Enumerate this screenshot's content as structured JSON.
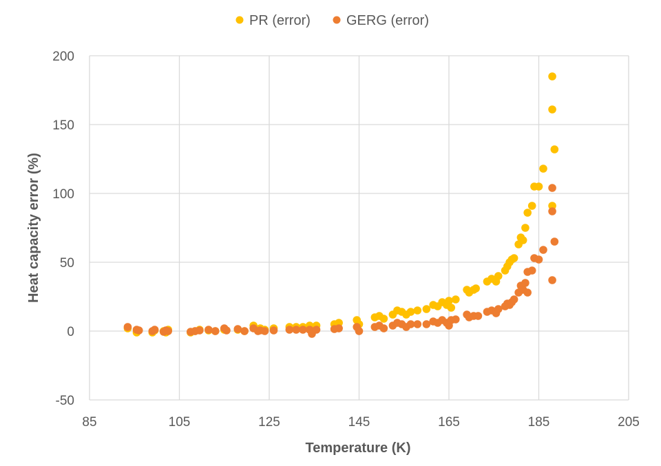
{
  "chart_data": {
    "type": "scatter",
    "title": "",
    "xlabel": "Temperature (K)",
    "ylabel": "Heat capacity error (%)",
    "xlim": [
      85,
      205
    ],
    "ylim": [
      -50,
      200
    ],
    "xticks": [
      85,
      105,
      125,
      145,
      165,
      185,
      205
    ],
    "yticks": [
      -50,
      0,
      50,
      100,
      150,
      200
    ],
    "xtick_labels": [
      "85",
      "105",
      "125",
      "145",
      "165",
      "185",
      "205"
    ],
    "ytick_labels": [
      "-50",
      "0",
      "50",
      "100",
      "150",
      "200"
    ],
    "grid": true,
    "legend_position": "top-center",
    "series": [
      {
        "name": "PR (error)",
        "color": "#FFC000",
        "points": [
          [
            93.5,
            2
          ],
          [
            95.5,
            -1
          ],
          [
            95.8,
            0.5
          ],
          [
            99,
            -1
          ],
          [
            99.5,
            0.5
          ],
          [
            101.5,
            0
          ],
          [
            102,
            -1
          ],
          [
            102.5,
            1
          ],
          [
            107.5,
            -1
          ],
          [
            108.5,
            0
          ],
          [
            109.5,
            1
          ],
          [
            111.5,
            0.5
          ],
          [
            113,
            0
          ],
          [
            115,
            1
          ],
          [
            118,
            1
          ],
          [
            119.5,
            0
          ],
          [
            121.5,
            4
          ],
          [
            122.5,
            1
          ],
          [
            123,
            2
          ],
          [
            124,
            1
          ],
          [
            126,
            2
          ],
          [
            129.5,
            3
          ],
          [
            131,
            3
          ],
          [
            132.5,
            3
          ],
          [
            134,
            4
          ],
          [
            135.5,
            4
          ],
          [
            139.5,
            5
          ],
          [
            140.5,
            6
          ],
          [
            144.5,
            8
          ],
          [
            145,
            5
          ],
          [
            148.5,
            10
          ],
          [
            149.5,
            11
          ],
          [
            150.5,
            9
          ],
          [
            152.5,
            12
          ],
          [
            153.5,
            15
          ],
          [
            154.5,
            14
          ],
          [
            155.5,
            12
          ],
          [
            156.5,
            14
          ],
          [
            158,
            15
          ],
          [
            160,
            16
          ],
          [
            161.5,
            19
          ],
          [
            162.5,
            18
          ],
          [
            163.5,
            21
          ],
          [
            164.5,
            19
          ],
          [
            165,
            22
          ],
          [
            165.5,
            17
          ],
          [
            166.5,
            23
          ],
          [
            169,
            30
          ],
          [
            169.5,
            28
          ],
          [
            170.5,
            30
          ],
          [
            171,
            31
          ],
          [
            173.5,
            36
          ],
          [
            174.5,
            38
          ],
          [
            175.5,
            36
          ],
          [
            176,
            40
          ],
          [
            177.5,
            44
          ],
          [
            178,
            47
          ],
          [
            178.5,
            50
          ],
          [
            179,
            52
          ],
          [
            179.5,
            53
          ],
          [
            180.5,
            63
          ],
          [
            181,
            68
          ],
          [
            181.5,
            66
          ],
          [
            182,
            75
          ],
          [
            182.5,
            86
          ],
          [
            183.5,
            91
          ],
          [
            184,
            105
          ],
          [
            185,
            105
          ],
          [
            186,
            118
          ],
          [
            188,
            91
          ],
          [
            188,
            161
          ],
          [
            188,
            185
          ],
          [
            188.5,
            132
          ]
        ]
      },
      {
        "name": "GERG (error)",
        "color": "#ED7D31",
        "points": [
          [
            93.5,
            3
          ],
          [
            95.5,
            1
          ],
          [
            96,
            0.5
          ],
          [
            99,
            0
          ],
          [
            99.5,
            1
          ],
          [
            101.5,
            -0.5
          ],
          [
            102,
            0.5
          ],
          [
            102.5,
            0
          ],
          [
            107.5,
            -0.5
          ],
          [
            108.5,
            0
          ],
          [
            109.5,
            0.5
          ],
          [
            111.5,
            1
          ],
          [
            113,
            0
          ],
          [
            115,
            2
          ],
          [
            115.5,
            0.5
          ],
          [
            118,
            1.5
          ],
          [
            119.5,
            0
          ],
          [
            121.5,
            2
          ],
          [
            122.5,
            0
          ],
          [
            123,
            0.5
          ],
          [
            124,
            0
          ],
          [
            126,
            0.5
          ],
          [
            129.5,
            1
          ],
          [
            131,
            1
          ],
          [
            132.5,
            1
          ],
          [
            134,
            1
          ],
          [
            134.5,
            -2
          ],
          [
            135.5,
            1
          ],
          [
            139.5,
            1.5
          ],
          [
            140.5,
            2
          ],
          [
            144.5,
            3
          ],
          [
            145,
            0
          ],
          [
            148.5,
            3
          ],
          [
            149.5,
            4
          ],
          [
            150.5,
            2
          ],
          [
            152.5,
            4
          ],
          [
            153.5,
            6
          ],
          [
            154.5,
            5
          ],
          [
            155.5,
            3
          ],
          [
            156.5,
            5
          ],
          [
            158,
            5
          ],
          [
            160,
            5
          ],
          [
            161.5,
            7
          ],
          [
            162.5,
            6
          ],
          [
            163.5,
            8
          ],
          [
            164.5,
            6
          ],
          [
            165,
            4
          ],
          [
            165.5,
            8
          ],
          [
            166.5,
            8.5
          ],
          [
            169,
            12
          ],
          [
            169.5,
            10
          ],
          [
            170.5,
            11
          ],
          [
            171.5,
            11
          ],
          [
            173.5,
            14
          ],
          [
            174.5,
            15
          ],
          [
            175.5,
            13
          ],
          [
            176,
            16
          ],
          [
            177.5,
            18
          ],
          [
            178,
            20
          ],
          [
            178.5,
            19
          ],
          [
            179,
            21
          ],
          [
            179.5,
            23
          ],
          [
            180.5,
            28
          ],
          [
            181,
            33
          ],
          [
            181.5,
            30
          ],
          [
            182,
            35
          ],
          [
            182.5,
            28
          ],
          [
            182.5,
            43
          ],
          [
            183.5,
            44
          ],
          [
            184,
            53
          ],
          [
            185,
            52
          ],
          [
            186,
            59
          ],
          [
            188,
            37
          ],
          [
            188,
            87
          ],
          [
            188,
            104
          ],
          [
            188.5,
            65
          ]
        ]
      }
    ]
  }
}
